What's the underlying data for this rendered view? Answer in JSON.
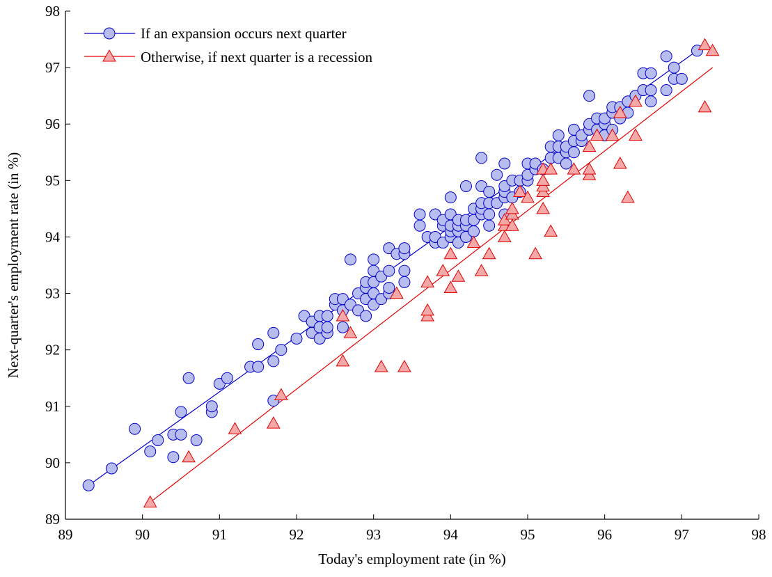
{
  "chart_data": {
    "type": "scatter",
    "xlabel": "Today's employment rate (in %)",
    "ylabel": "Next-quarter's employment rate (in %)",
    "xlim": [
      89,
      98
    ],
    "ylim": [
      89,
      98
    ],
    "xticks": [
      89,
      90,
      91,
      92,
      93,
      94,
      95,
      96,
      97,
      98
    ],
    "yticks": [
      89,
      90,
      91,
      92,
      93,
      94,
      95,
      96,
      97,
      98
    ],
    "grid": false,
    "legend_position": "top-left",
    "series": [
      {
        "name": "If an expansion occurs next quarter",
        "marker": "circle",
        "color": "#0000cc",
        "fill": "#b8bdf0",
        "fit_line": [
          [
            89.3,
            89.6
          ],
          [
            97.2,
            97.3
          ]
        ],
        "points": [
          [
            89.3,
            89.6
          ],
          [
            89.6,
            89.9
          ],
          [
            89.9,
            90.6
          ],
          [
            90.1,
            90.2
          ],
          [
            90.2,
            90.4
          ],
          [
            90.4,
            90.5
          ],
          [
            90.4,
            90.1
          ],
          [
            90.5,
            90.5
          ],
          [
            90.5,
            90.9
          ],
          [
            90.6,
            91.5
          ],
          [
            90.7,
            90.4
          ],
          [
            90.9,
            90.9
          ],
          [
            90.9,
            91.0
          ],
          [
            91.0,
            91.4
          ],
          [
            91.1,
            91.5
          ],
          [
            91.4,
            91.7
          ],
          [
            91.5,
            91.7
          ],
          [
            91.5,
            92.1
          ],
          [
            91.7,
            91.1
          ],
          [
            91.7,
            91.8
          ],
          [
            91.7,
            92.3
          ],
          [
            91.8,
            92.0
          ],
          [
            92.0,
            92.2
          ],
          [
            92.1,
            92.6
          ],
          [
            92.2,
            92.3
          ],
          [
            92.2,
            92.5
          ],
          [
            92.3,
            92.2
          ],
          [
            92.3,
            92.4
          ],
          [
            92.3,
            92.6
          ],
          [
            92.4,
            92.3
          ],
          [
            92.4,
            92.4
          ],
          [
            92.4,
            92.6
          ],
          [
            92.5,
            92.8
          ],
          [
            92.5,
            92.9
          ],
          [
            92.6,
            92.4
          ],
          [
            92.6,
            92.7
          ],
          [
            92.6,
            92.9
          ],
          [
            92.7,
            92.8
          ],
          [
            92.7,
            93.6
          ],
          [
            92.8,
            92.7
          ],
          [
            92.8,
            93.0
          ],
          [
            92.9,
            92.6
          ],
          [
            92.9,
            92.9
          ],
          [
            92.9,
            93.1
          ],
          [
            92.9,
            93.2
          ],
          [
            93.0,
            92.8
          ],
          [
            93.0,
            93.0
          ],
          [
            93.0,
            93.2
          ],
          [
            93.0,
            93.4
          ],
          [
            93.0,
            93.6
          ],
          [
            93.1,
            92.9
          ],
          [
            93.1,
            93.3
          ],
          [
            93.2,
            93.0
          ],
          [
            93.2,
            93.1
          ],
          [
            93.2,
            93.4
          ],
          [
            93.2,
            93.8
          ],
          [
            93.3,
            93.7
          ],
          [
            93.4,
            93.2
          ],
          [
            93.4,
            93.4
          ],
          [
            93.4,
            93.7
          ],
          [
            93.4,
            93.8
          ],
          [
            93.6,
            94.2
          ],
          [
            93.6,
            94.4
          ],
          [
            93.7,
            94.0
          ],
          [
            93.8,
            93.9
          ],
          [
            93.8,
            94.0
          ],
          [
            93.8,
            94.4
          ],
          [
            93.9,
            93.9
          ],
          [
            93.9,
            94.2
          ],
          [
            93.9,
            94.3
          ],
          [
            94.0,
            94.0
          ],
          [
            94.0,
            94.1
          ],
          [
            94.0,
            94.2
          ],
          [
            94.0,
            94.4
          ],
          [
            94.0,
            94.7
          ],
          [
            94.1,
            93.9
          ],
          [
            94.1,
            94.1
          ],
          [
            94.1,
            94.2
          ],
          [
            94.1,
            94.3
          ],
          [
            94.2,
            94.0
          ],
          [
            94.2,
            94.2
          ],
          [
            94.2,
            94.3
          ],
          [
            94.2,
            94.9
          ],
          [
            94.3,
            94.1
          ],
          [
            94.3,
            94.3
          ],
          [
            94.3,
            94.5
          ],
          [
            94.4,
            94.4
          ],
          [
            94.4,
            94.5
          ],
          [
            94.4,
            94.6
          ],
          [
            94.4,
            94.9
          ],
          [
            94.4,
            95.4
          ],
          [
            94.5,
            94.2
          ],
          [
            94.5,
            94.4
          ],
          [
            94.5,
            94.6
          ],
          [
            94.5,
            94.8
          ],
          [
            94.6,
            94.6
          ],
          [
            94.6,
            95.1
          ],
          [
            94.7,
            94.4
          ],
          [
            94.7,
            94.7
          ],
          [
            94.7,
            94.8
          ],
          [
            94.7,
            94.9
          ],
          [
            94.7,
            95.3
          ],
          [
            94.8,
            94.7
          ],
          [
            94.8,
            95.0
          ],
          [
            94.9,
            94.8
          ],
          [
            94.9,
            95.0
          ],
          [
            95.0,
            95.0
          ],
          [
            95.0,
            95.1
          ],
          [
            95.0,
            95.3
          ],
          [
            95.1,
            95.2
          ],
          [
            95.1,
            95.3
          ],
          [
            95.2,
            95.2
          ],
          [
            95.3,
            95.4
          ],
          [
            95.3,
            95.6
          ],
          [
            95.4,
            95.4
          ],
          [
            95.4,
            95.6
          ],
          [
            95.4,
            95.8
          ],
          [
            95.5,
            95.3
          ],
          [
            95.5,
            95.5
          ],
          [
            95.5,
            95.6
          ],
          [
            95.6,
            95.5
          ],
          [
            95.6,
            95.7
          ],
          [
            95.6,
            95.9
          ],
          [
            95.7,
            95.7
          ],
          [
            95.7,
            95.8
          ],
          [
            95.8,
            95.9
          ],
          [
            95.8,
            96.0
          ],
          [
            95.8,
            96.5
          ],
          [
            95.9,
            95.9
          ],
          [
            95.9,
            96.1
          ],
          [
            96.0,
            95.8
          ],
          [
            96.0,
            96.0
          ],
          [
            96.0,
            96.1
          ],
          [
            96.1,
            95.9
          ],
          [
            96.1,
            96.2
          ],
          [
            96.1,
            96.3
          ],
          [
            96.2,
            96.1
          ],
          [
            96.2,
            96.3
          ],
          [
            96.3,
            96.2
          ],
          [
            96.3,
            96.4
          ],
          [
            96.4,
            96.5
          ],
          [
            96.5,
            96.6
          ],
          [
            96.5,
            96.9
          ],
          [
            96.6,
            96.4
          ],
          [
            96.6,
            96.6
          ],
          [
            96.6,
            96.9
          ],
          [
            96.8,
            96.6
          ],
          [
            96.8,
            97.2
          ],
          [
            96.9,
            96.8
          ],
          [
            96.9,
            97.0
          ],
          [
            97.0,
            96.8
          ],
          [
            97.2,
            97.3
          ]
        ]
      },
      {
        "name": "Otherwise, if next quarter is a recession",
        "marker": "triangle",
        "color": "#e00000",
        "fill": "#f5a8a8",
        "fit_line": [
          [
            90.1,
            89.3
          ],
          [
            97.4,
            97.0
          ]
        ],
        "points": [
          [
            90.1,
            89.3
          ],
          [
            90.6,
            90.1
          ],
          [
            91.2,
            90.6
          ],
          [
            91.7,
            90.7
          ],
          [
            91.8,
            91.2
          ],
          [
            92.6,
            91.8
          ],
          [
            92.6,
            92.6
          ],
          [
            92.7,
            92.3
          ],
          [
            93.1,
            91.7
          ],
          [
            93.3,
            93.0
          ],
          [
            93.4,
            91.7
          ],
          [
            93.7,
            92.6
          ],
          [
            93.7,
            92.7
          ],
          [
            93.7,
            93.2
          ],
          [
            93.9,
            93.4
          ],
          [
            94.0,
            93.1
          ],
          [
            94.0,
            93.7
          ],
          [
            94.1,
            93.3
          ],
          [
            94.3,
            93.9
          ],
          [
            94.4,
            93.4
          ],
          [
            94.5,
            93.7
          ],
          [
            94.7,
            94.0
          ],
          [
            94.7,
            94.2
          ],
          [
            94.7,
            94.3
          ],
          [
            94.8,
            94.2
          ],
          [
            94.8,
            94.4
          ],
          [
            94.8,
            94.5
          ],
          [
            94.9,
            94.8
          ],
          [
            95.0,
            94.7
          ],
          [
            95.1,
            93.7
          ],
          [
            95.2,
            94.5
          ],
          [
            95.2,
            94.8
          ],
          [
            95.2,
            94.9
          ],
          [
            95.2,
            95.0
          ],
          [
            95.2,
            95.2
          ],
          [
            95.3,
            94.1
          ],
          [
            95.3,
            95.2
          ],
          [
            95.6,
            95.2
          ],
          [
            95.8,
            95.1
          ],
          [
            95.8,
            95.2
          ],
          [
            95.8,
            95.6
          ],
          [
            95.9,
            95.8
          ],
          [
            96.1,
            95.8
          ],
          [
            96.2,
            95.3
          ],
          [
            96.2,
            96.2
          ],
          [
            96.3,
            94.7
          ],
          [
            96.4,
            95.8
          ],
          [
            96.4,
            96.4
          ],
          [
            97.3,
            96.3
          ],
          [
            97.3,
            97.4
          ],
          [
            97.4,
            97.3
          ]
        ]
      }
    ]
  }
}
